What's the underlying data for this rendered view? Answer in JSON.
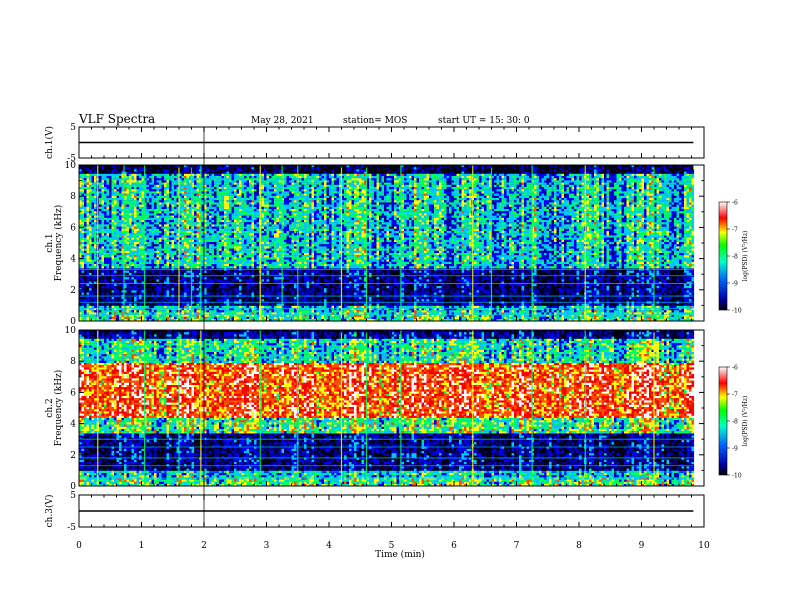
{
  "header": {
    "title": "VLF Spectra",
    "date": "May 28, 2021",
    "station": "station= MOS",
    "start": "start  UT =   15: 30: 0"
  },
  "chart_data": [
    {
      "type": "line",
      "panel": "ch1-waveform",
      "ylabel": "ch.1(V)",
      "ylim": [
        -5,
        5
      ],
      "yticks": [
        "5",
        "-5"
      ],
      "x": [
        0,
        9.83
      ],
      "values": [
        0,
        0
      ]
    },
    {
      "type": "heatmap",
      "panel": "ch1-spectrogram",
      "ylabel": "ch.1\nFrequency (kHz)",
      "ylim": [
        0,
        10
      ],
      "yticks": [
        "0",
        "2",
        "4",
        "6",
        "8",
        "10"
      ],
      "xlim": [
        0,
        10
      ],
      "data_extent_min": 9.83,
      "colorbar": {
        "label": "log(PSD) (V²/Hz)",
        "range": [
          -10,
          -6
        ],
        "ticks": [
          "-10",
          "-9",
          "-8",
          "-7",
          "-6"
        ]
      },
      "bands": [
        {
          "f_low": 0.0,
          "f_high": 0.6,
          "logpsd": -8.3
        },
        {
          "f_low": 0.6,
          "f_high": 1.0,
          "logpsd": -8.6
        },
        {
          "f_low": 1.0,
          "f_high": 3.5,
          "logpsd": -9.7
        },
        {
          "f_low": 3.5,
          "f_high": 9.5,
          "logpsd": -8.6
        },
        {
          "f_low": 9.5,
          "f_high": 10.0,
          "logpsd": -10.0
        }
      ],
      "horizontal_lines_khz": [
        0.4,
        0.8,
        1.2,
        1.6,
        2.4,
        2.9,
        3.3
      ],
      "vertical_spikes_min": [
        0.3,
        0.72,
        1.05,
        1.6,
        1.8,
        1.95,
        2.9,
        3.25,
        3.5,
        4.2,
        4.6,
        5.15,
        6.3,
        6.6,
        7.25,
        8.1,
        9.2
      ]
    },
    {
      "type": "heatmap",
      "panel": "ch2-spectrogram",
      "ylabel": "ch.2\nFrequency (kHz)",
      "ylim": [
        0,
        10
      ],
      "yticks": [
        "0",
        "2",
        "4",
        "6",
        "8",
        "10"
      ],
      "xlim": [
        0,
        10
      ],
      "data_extent_min": 9.83,
      "colorbar": {
        "label": "log(PSD) (V²/Hz)",
        "range": [
          -10,
          -6
        ],
        "ticks": [
          "-10",
          "-9",
          "-8",
          "-7",
          "-6"
        ]
      },
      "bands": [
        {
          "f_low": 0.0,
          "f_high": 0.6,
          "logpsd": -8.2
        },
        {
          "f_low": 0.6,
          "f_high": 1.0,
          "logpsd": -8.6
        },
        {
          "f_low": 1.0,
          "f_high": 3.5,
          "logpsd": -9.7
        },
        {
          "f_low": 3.5,
          "f_high": 4.5,
          "logpsd": -8.2
        },
        {
          "f_low": 4.5,
          "f_high": 8.0,
          "logpsd": -7.0
        },
        {
          "f_low": 8.0,
          "f_high": 9.5,
          "logpsd": -8.4
        },
        {
          "f_low": 9.5,
          "f_high": 10.0,
          "logpsd": -9.6
        }
      ],
      "horizontal_lines_khz": [
        0.5,
        0.9,
        1.3,
        1.8,
        2.5,
        3.0
      ],
      "vertical_spikes_min": [
        0.3,
        1.05,
        1.6,
        1.95,
        2.9,
        3.5,
        4.2,
        4.6,
        5.15,
        6.3,
        7.25,
        8.1,
        9.2
      ]
    },
    {
      "type": "line",
      "panel": "ch3-waveform",
      "ylabel": "ch.3(V)",
      "ylim": [
        -5,
        5
      ],
      "yticks": [
        "5",
        "-5"
      ],
      "x": [
        0,
        9.83
      ],
      "values": [
        0,
        0
      ]
    }
  ],
  "xaxis": {
    "label": "Time  (min)",
    "ticks": [
      "0",
      "1",
      "2",
      "3",
      "4",
      "5",
      "6",
      "7",
      "8",
      "9",
      "10"
    ]
  },
  "colors": {
    "colormap": [
      "#00008c",
      "#0000ff",
      "#00c8ff",
      "#00ff64",
      "#ffff00",
      "#ff5000",
      "#ff0000",
      "#ffffff"
    ],
    "background": "#000014",
    "line": "#00c8ff"
  }
}
